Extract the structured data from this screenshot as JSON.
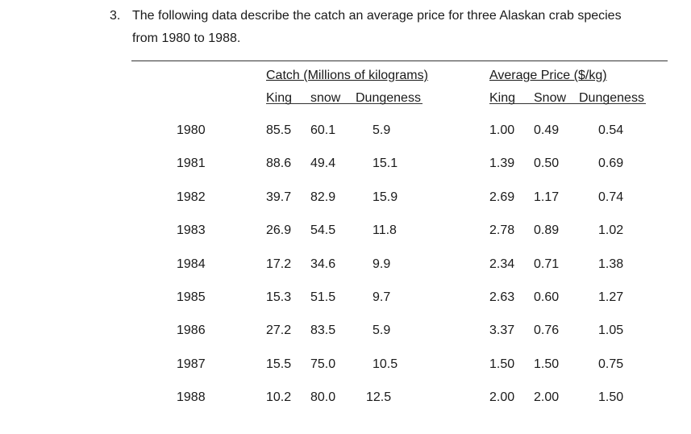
{
  "question": {
    "number": "3.",
    "line1": "The following data describe the catch an average price for three Alaskan crab species",
    "line2": "from 1980 to 1988."
  },
  "table": {
    "catch_header": "Catch (Millions of kilograms)",
    "price_header": "Average Price ($/kg)",
    "catch_sub": [
      "King",
      "snow",
      "Dungeness"
    ],
    "price_sub": [
      "King",
      "Snow",
      "Dungeness"
    ],
    "rows": [
      {
        "year": "1980",
        "catch": [
          "85.5",
          "60.1",
          "5.9"
        ],
        "price": [
          "1.00",
          "0.49",
          "0.54"
        ]
      },
      {
        "year": "1981",
        "catch": [
          "88.6",
          "49.4",
          "15.1"
        ],
        "price": [
          "1.39",
          "0.50",
          "0.69"
        ]
      },
      {
        "year": "1982",
        "catch": [
          "39.7",
          "82.9",
          "15.9"
        ],
        "price": [
          "2.69",
          "1.17",
          "0.74"
        ]
      },
      {
        "year": "1983",
        "catch": [
          "26.9",
          "54.5",
          "11.8"
        ],
        "price": [
          "2.78",
          "0.89",
          "1.02"
        ]
      },
      {
        "year": "1984",
        "catch": [
          "17.2",
          "34.6",
          "9.9"
        ],
        "price": [
          "2.34",
          "0.71",
          "1.38"
        ]
      },
      {
        "year": "1985",
        "catch": [
          "15.3",
          "51.5",
          "9.7"
        ],
        "price": [
          "2.63",
          "0.60",
          "1.27"
        ]
      },
      {
        "year": "1986",
        "catch": [
          "27.2",
          "83.5",
          "5.9"
        ],
        "price": [
          "3.37",
          "0.76",
          "1.05"
        ]
      },
      {
        "year": "1987",
        "catch": [
          "15.5",
          "75.0",
          "10.5"
        ],
        "price": [
          "1.50",
          "1.50",
          "0.75"
        ]
      },
      {
        "year": "1988",
        "catch": [
          "10.2",
          "80.0",
          "12.5"
        ],
        "price": [
          "2.00",
          "2.00",
          "1.50"
        ]
      }
    ]
  }
}
